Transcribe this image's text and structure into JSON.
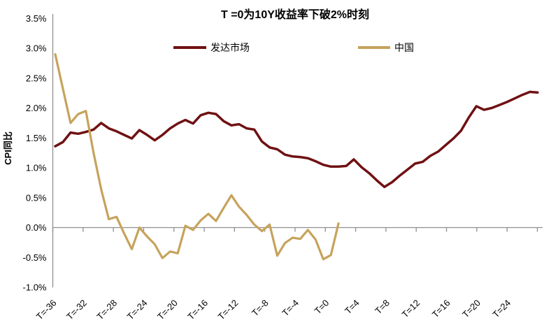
{
  "page": {
    "background": "#ffffff"
  },
  "chart_data": {
    "type": "line",
    "title": "T =0为10Y收益率下破2%时刻",
    "ylabel": "CPI同比",
    "xlabel": "",
    "x_unit": "months relative to T=0",
    "ylim": [
      -1.0,
      3.5
    ],
    "x_range": [
      -36,
      27
    ],
    "grid": "zero-baseline-only",
    "legend_position": "top-center",
    "axis_color": "#8f8f8f",
    "text_color": "#000000",
    "y_ticks": [
      {
        "v": 3.5,
        "label": "3.5%"
      },
      {
        "v": 3.0,
        "label": "3.0%"
      },
      {
        "v": 2.5,
        "label": "2.5%"
      },
      {
        "v": 2.0,
        "label": "2.0%"
      },
      {
        "v": 1.5,
        "label": "1.5%"
      },
      {
        "v": 1.0,
        "label": "1.0%"
      },
      {
        "v": 0.5,
        "label": "0.5%"
      },
      {
        "v": 0.0,
        "label": "0.0%"
      },
      {
        "v": -0.5,
        "label": "-0.5%"
      },
      {
        "v": -1.0,
        "label": "-1.0%"
      }
    ],
    "x_ticks": [
      {
        "t": -36,
        "label": "T=-36"
      },
      {
        "t": -32,
        "label": "T=-32"
      },
      {
        "t": -28,
        "label": "T=-28"
      },
      {
        "t": -24,
        "label": "T=-24"
      },
      {
        "t": -20,
        "label": "T=-20"
      },
      {
        "t": -16,
        "label": "T=-16"
      },
      {
        "t": -12,
        "label": "T=-12"
      },
      {
        "t": -8,
        "label": "T=-8"
      },
      {
        "t": -4,
        "label": "T=-4"
      },
      {
        "t": 0,
        "label": "T=0"
      },
      {
        "t": 4,
        "label": "T=4"
      },
      {
        "t": 8,
        "label": "T=8"
      },
      {
        "t": 12,
        "label": "T=12"
      },
      {
        "t": 16,
        "label": "T=16"
      },
      {
        "t": 20,
        "label": "T=20"
      },
      {
        "t": 24,
        "label": "T=24"
      }
    ],
    "series": [
      {
        "name": "发达市场",
        "id": "developed-markets",
        "color": "#6f1113",
        "stroke_width": 3.5,
        "x_start": -36,
        "values": [
          1.36,
          1.43,
          1.59,
          1.57,
          1.6,
          1.64,
          1.75,
          1.66,
          1.61,
          1.55,
          1.49,
          1.63,
          1.55,
          1.46,
          1.55,
          1.66,
          1.74,
          1.8,
          1.74,
          1.88,
          1.92,
          1.9,
          1.78,
          1.71,
          1.73,
          1.66,
          1.64,
          1.44,
          1.34,
          1.31,
          1.22,
          1.19,
          1.18,
          1.16,
          1.11,
          1.05,
          1.02,
          1.02,
          1.03,
          1.14,
          1.01,
          0.91,
          0.79,
          0.68,
          0.76,
          0.87,
          0.97,
          1.07,
          1.1,
          1.2,
          1.27,
          1.38,
          1.49,
          1.62,
          1.84,
          2.03,
          1.97,
          2.0,
          2.05,
          2.1,
          2.16,
          2.22,
          2.27,
          2.26
        ]
      },
      {
        "name": "中国",
        "id": "china",
        "color": "#c6a35c",
        "stroke_width": 3.2,
        "x_start": -36,
        "values": [
          2.9,
          2.32,
          1.75,
          1.9,
          1.95,
          1.25,
          0.64,
          0.14,
          0.18,
          -0.1,
          -0.36,
          0.0,
          -0.15,
          -0.28,
          -0.51,
          -0.4,
          -0.43,
          0.03,
          -0.04,
          0.12,
          0.23,
          0.11,
          0.33,
          0.54,
          0.35,
          0.21,
          0.05,
          -0.06,
          0.05,
          -0.47,
          -0.26,
          -0.17,
          -0.19,
          -0.04,
          -0.2,
          -0.53,
          -0.46,
          0.07
        ]
      }
    ]
  }
}
